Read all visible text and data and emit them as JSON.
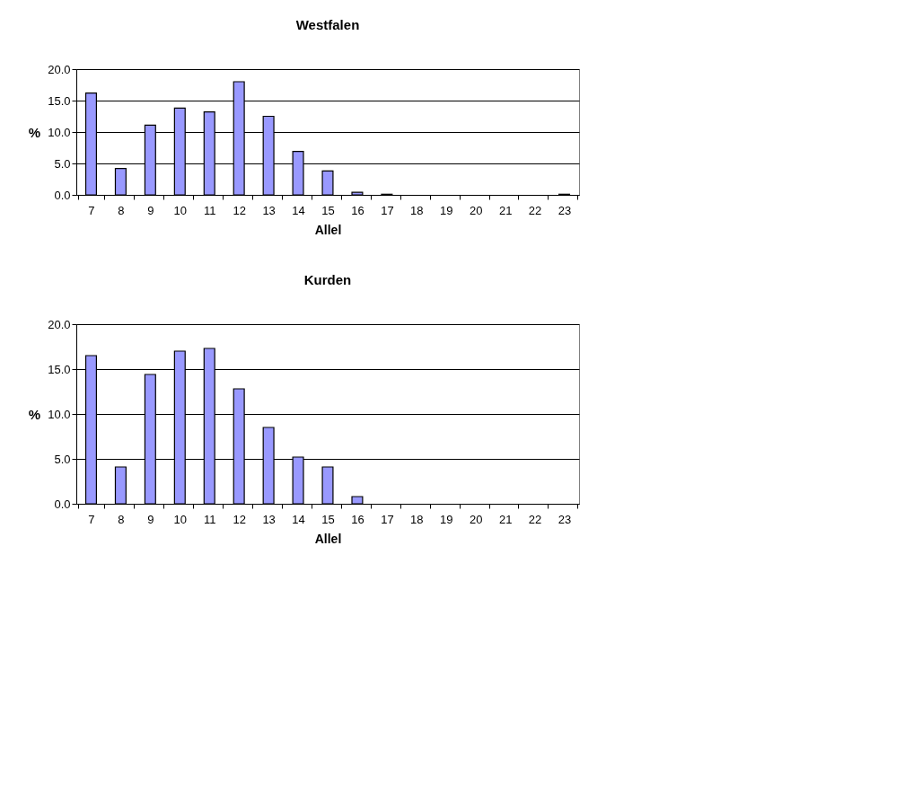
{
  "chart_data": [
    {
      "type": "bar",
      "title": "Westfalen",
      "xlabel": "Allel",
      "ylabel": "%",
      "categories": [
        "7",
        "8",
        "9",
        "10",
        "11",
        "12",
        "13",
        "14",
        "15",
        "16",
        "17",
        "18",
        "19",
        "20",
        "21",
        "22",
        "23"
      ],
      "values": [
        16.2,
        4.2,
        11.1,
        13.8,
        13.2,
        18.0,
        12.5,
        6.9,
        3.8,
        0.4,
        0.1,
        0,
        0,
        0,
        0,
        0,
        0.1
      ],
      "color": "#9999ff",
      "ylim": [
        0,
        20
      ],
      "yticks": [
        {
          "value": 0,
          "label": "0.0"
        },
        {
          "value": 5,
          "label": "5.0"
        },
        {
          "value": 10,
          "label": "10.0"
        },
        {
          "value": 15,
          "label": "15.0"
        },
        {
          "value": 20,
          "label": "20.0"
        }
      ],
      "grid": "y"
    },
    {
      "type": "bar",
      "title": "Kurden",
      "xlabel": "Allel",
      "ylabel": "%",
      "categories": [
        "7",
        "8",
        "9",
        "10",
        "11",
        "12",
        "13",
        "14",
        "15",
        "16",
        "17",
        "18",
        "19",
        "20",
        "21",
        "22",
        "23"
      ],
      "values": [
        16.5,
        4.1,
        14.4,
        17.0,
        17.3,
        12.8,
        8.5,
        5.2,
        4.1,
        0.8,
        0,
        0,
        0,
        0,
        0,
        0,
        0
      ],
      "color": "#9999ff",
      "ylim": [
        0,
        20
      ],
      "yticks": [
        {
          "value": 0,
          "label": "0.0"
        },
        {
          "value": 5,
          "label": "5.0"
        },
        {
          "value": 10,
          "label": "10.0"
        },
        {
          "value": 15,
          "label": "15.0"
        },
        {
          "value": 20,
          "label": "20.0"
        }
      ],
      "grid": "y"
    }
  ]
}
